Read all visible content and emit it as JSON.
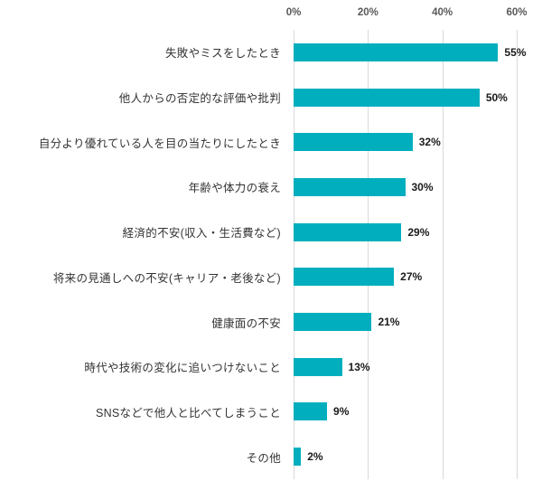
{
  "chart_data": {
    "type": "bar",
    "orientation": "horizontal",
    "title": "",
    "xlabel": "",
    "ylabel": "",
    "legend": false,
    "grid": true,
    "axis_position": "top",
    "xlim": [
      0,
      60
    ],
    "ticks": [
      {
        "value": 0,
        "label": "0%"
      },
      {
        "value": 20,
        "label": "20%"
      },
      {
        "value": 40,
        "label": "40%"
      },
      {
        "value": 60,
        "label": "60%"
      }
    ],
    "categories": [
      "失敗やミスをしたとき",
      "他人からの否定的な評価や批判",
      "自分より優れている人を目の当たりにしたとき",
      "年齢や体力の衰え",
      "経済的不安(収入・生活費など)",
      "将来の見通しへの不安(キャリア・老後など)",
      "健康面の不安",
      "時代や技術の変化に追いつけないこと",
      "SNSなどで他人と比べてしまうこと",
      "その他"
    ],
    "values": [
      55,
      50,
      32,
      30,
      29,
      27,
      21,
      13,
      9,
      2
    ],
    "value_labels": [
      "55%",
      "50%",
      "32%",
      "30%",
      "29%",
      "27%",
      "21%",
      "13%",
      "9%",
      "2%"
    ],
    "colors": {
      "bar": "#00AEBE",
      "gridline": "#D9D9D9",
      "tick_text": "#595959",
      "category_text": "#333333",
      "value_text": "#1a1a1a"
    }
  }
}
